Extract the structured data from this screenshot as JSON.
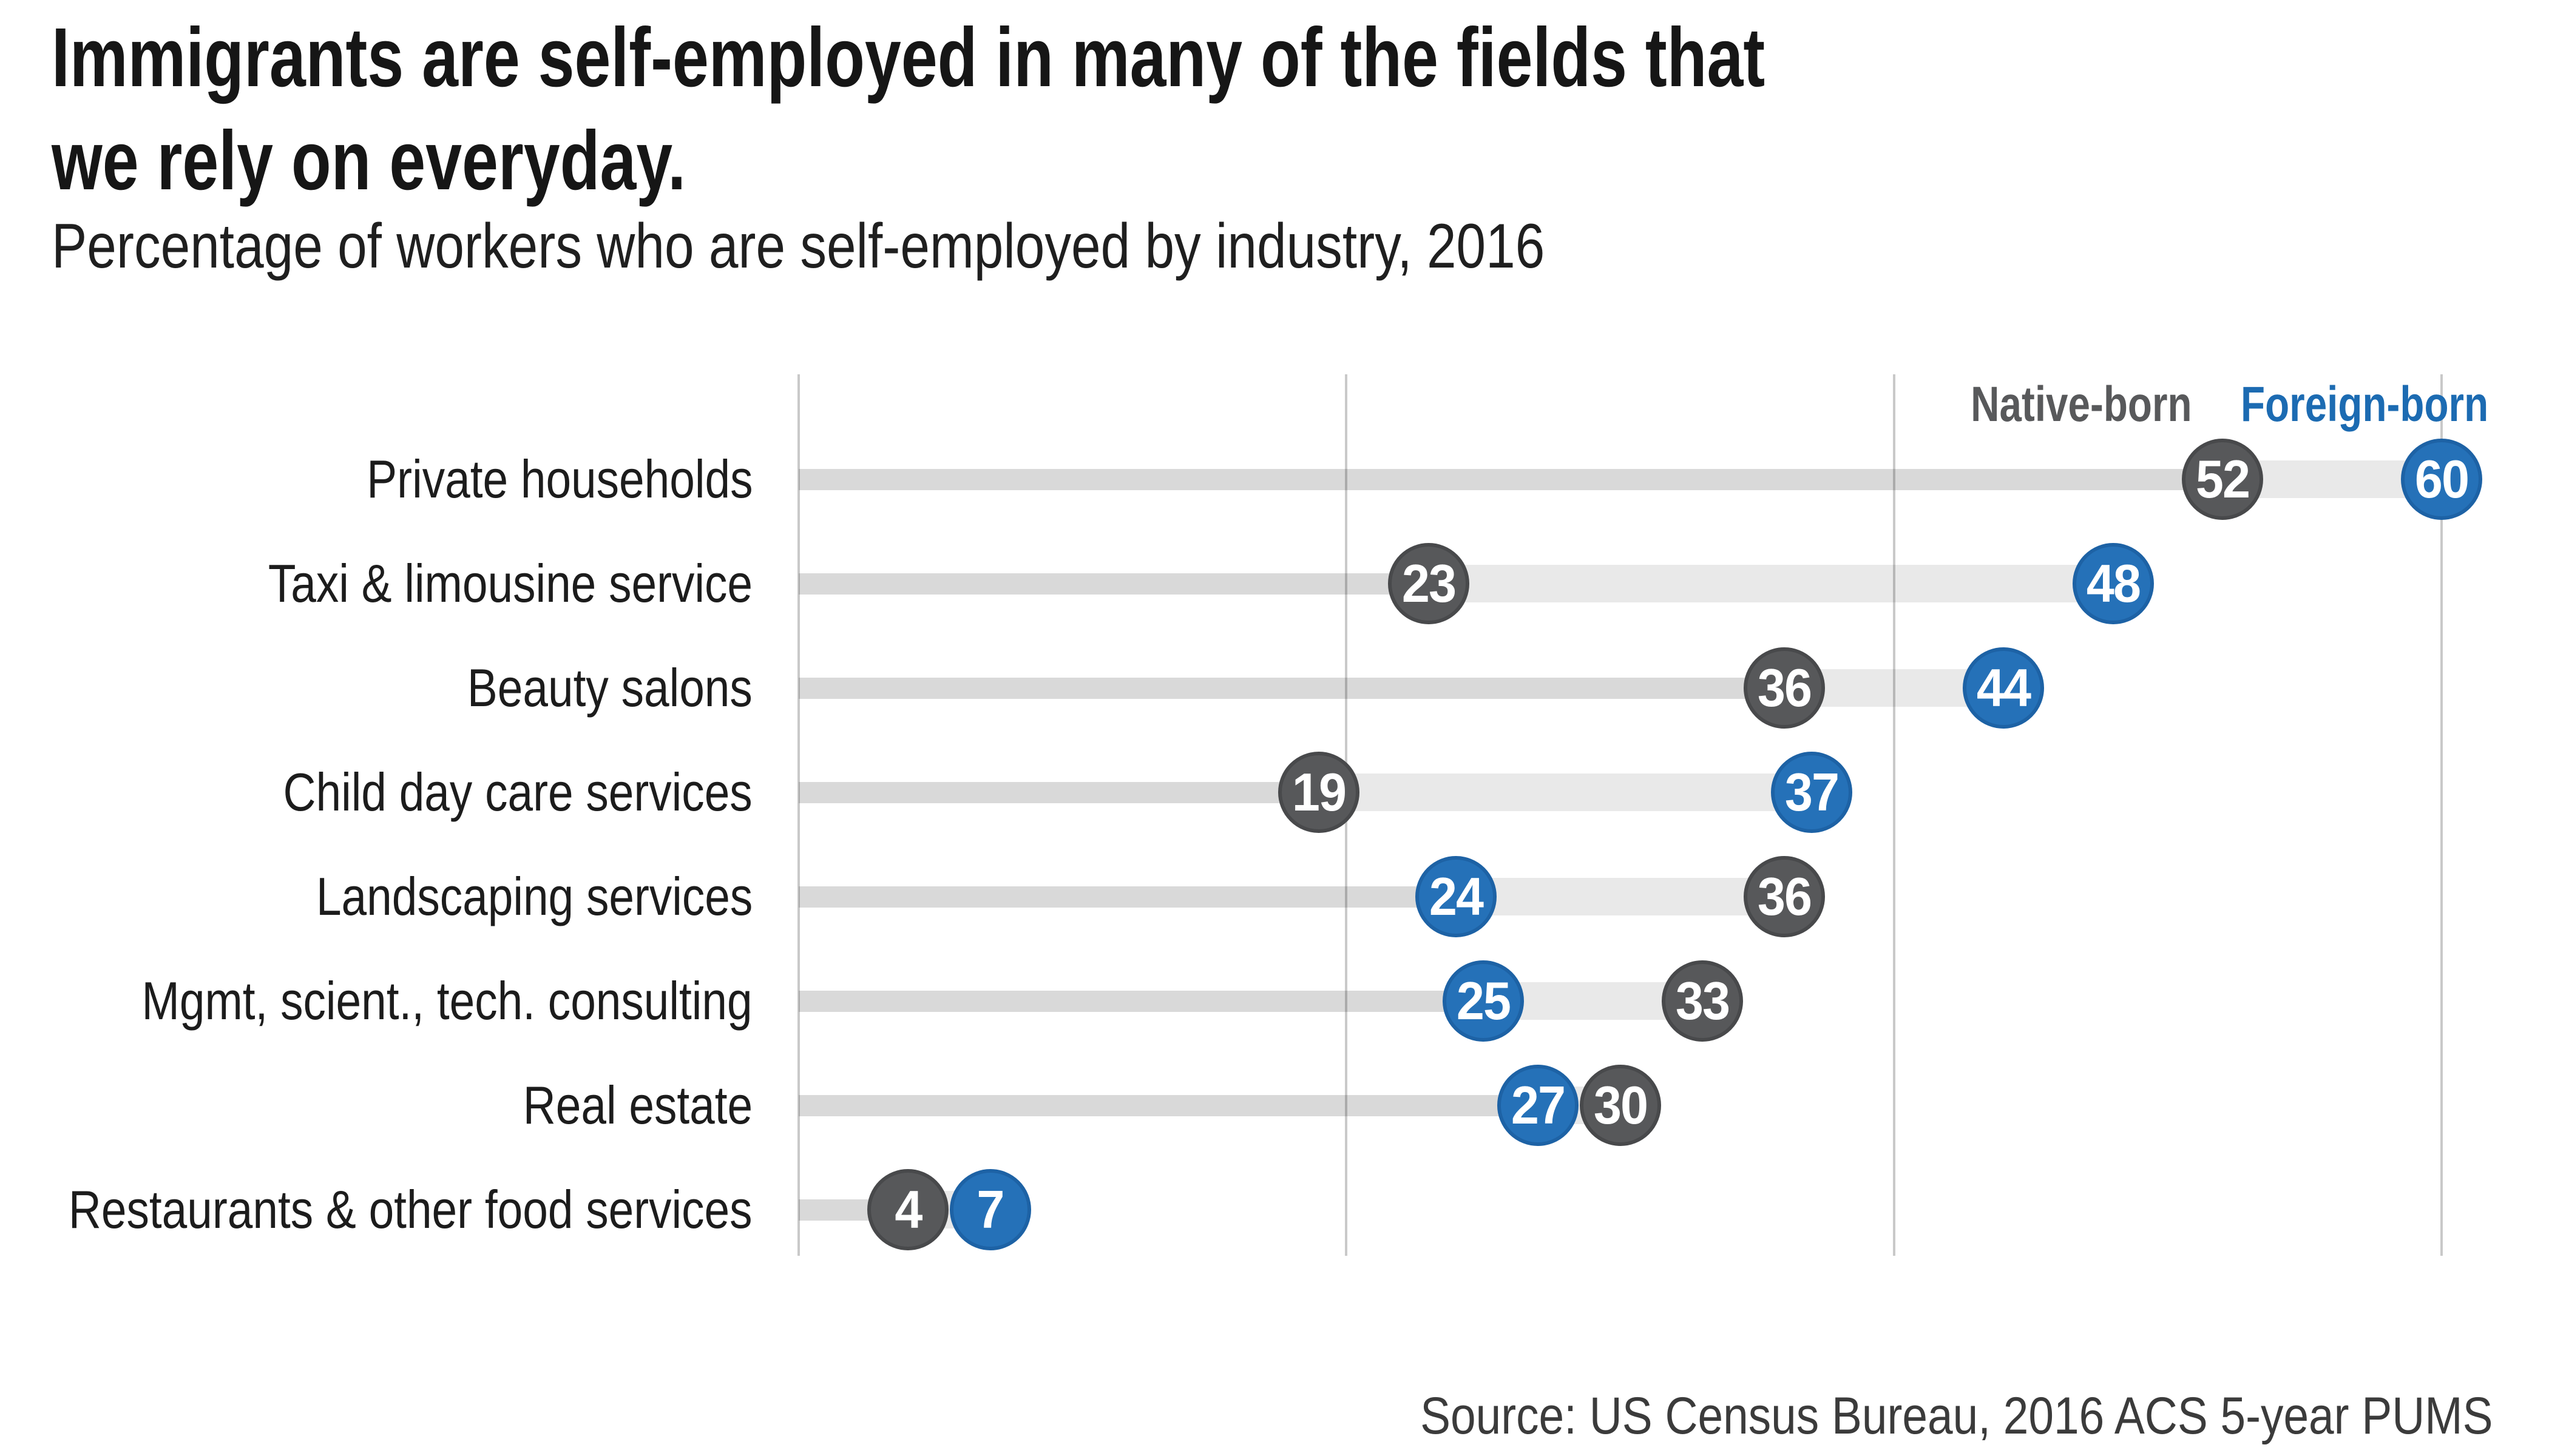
{
  "title": {
    "line1": "Immigrants are self-employed in many of the fields that",
    "line2": "we rely on everyday."
  },
  "subtitle": "Percentage of workers who are self-employed by industry, 2016",
  "legend": {
    "native_label": "Native-born",
    "foreign_label": "Foreign-born"
  },
  "source": "Source: US Census Bureau, 2016 ACS 5-year PUMS",
  "colors": {
    "native_fill": "#57585a",
    "native_ring": "#48494b",
    "foreign_fill": "#2571b8",
    "foreign_ring": "#1d62a5",
    "legend_native_text": "#58595b",
    "legend_foreign_text": "#1c6bb2",
    "bar_thin": "rgba(0,0,0,0.15)",
    "bar_thick": "rgba(0,0,0,0.085)",
    "gridline": "#c9c9c9"
  },
  "chart_data": {
    "type": "bar",
    "subtype": "dumbbell",
    "title": "Immigrants are self-employed in many of the fields that we rely on everyday.",
    "subtitle": "Percentage of workers who are self-employed by industry, 2016",
    "categories": [
      "Private households",
      "Taxi & limousine service",
      "Beauty salons",
      "Child day care services",
      "Landscaping services",
      "Mgmt, scient., tech. consulting",
      "Real estate",
      "Restaurants & other food services"
    ],
    "series": [
      {
        "name": "Native-born",
        "values": [
          52,
          23,
          36,
          19,
          36,
          33,
          30,
          4
        ]
      },
      {
        "name": "Foreign-born",
        "values": [
          60,
          48,
          44,
          37,
          24,
          25,
          27,
          7
        ]
      }
    ],
    "xlabel": "",
    "ylabel": "",
    "xlim": [
      0,
      60
    ],
    "gridlines_at": [
      0,
      20,
      40,
      60
    ],
    "grid": "vertical only, no tick labels",
    "legend_position": "top-right above first row",
    "value_labels": "inside circular markers"
  }
}
